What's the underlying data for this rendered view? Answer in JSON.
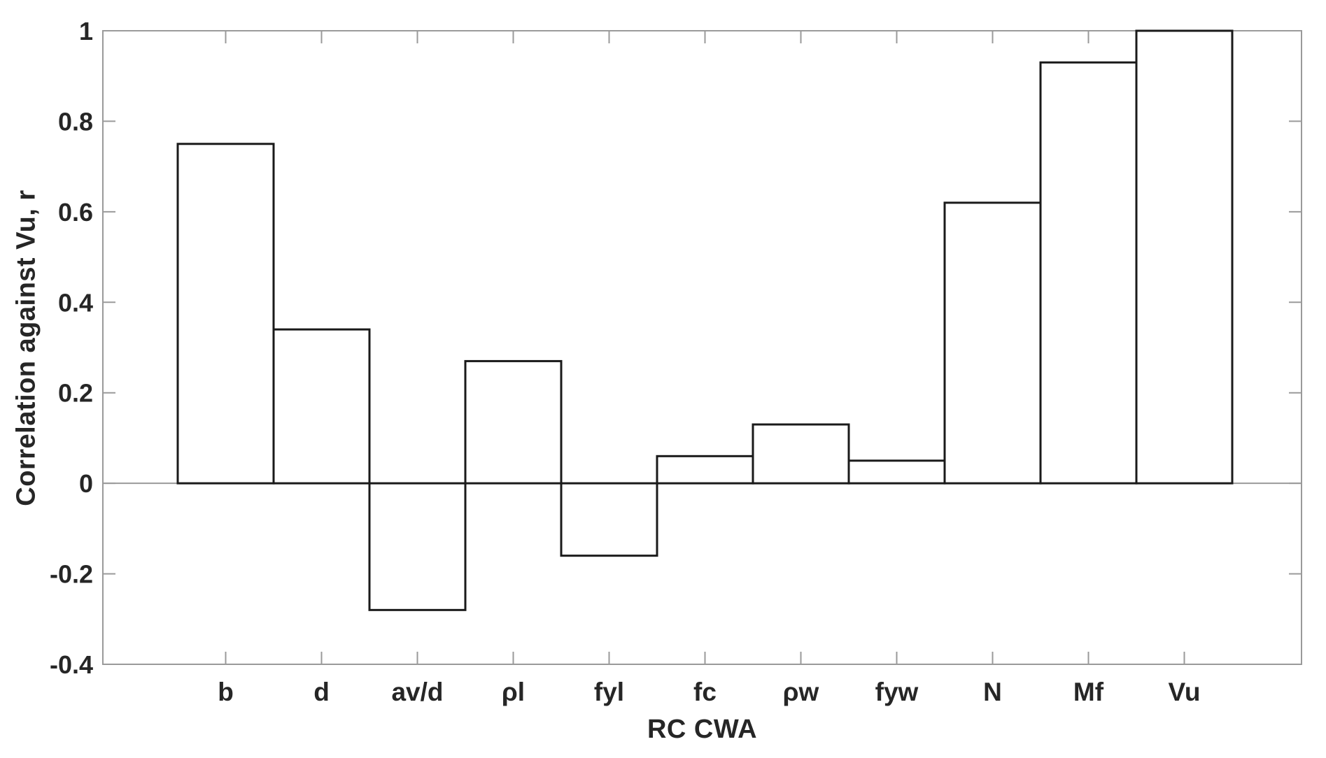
{
  "figure": {
    "background": "#ffffff",
    "axis_color": "#9a9a9a",
    "bar_fill": "#ffffff",
    "bar_stroke": "#1a1a1a",
    "text_color": "#262626"
  },
  "chart_data": {
    "type": "bar",
    "title": "",
    "xlabel": "RC CWA",
    "ylabel": "Correlation against Vu, r",
    "categories": [
      "b",
      "d",
      "av/d",
      "ρl",
      "fyl",
      "fc",
      "ρw",
      "fyw",
      "N",
      "Mf",
      "Vu"
    ],
    "values": [
      0.75,
      0.34,
      -0.28,
      0.27,
      -0.16,
      0.06,
      0.13,
      0.05,
      0.62,
      0.93,
      1.0
    ],
    "ylim": [
      -0.4,
      1.0
    ],
    "ytick_step": 0.2,
    "ytick_labels_top_down": [
      "1",
      "0.8",
      "0.6",
      "0.4",
      "0.2",
      "0",
      "-0.2",
      "-0.4"
    ],
    "grid": false,
    "legend": null,
    "box": true,
    "zero_line": true,
    "bar_width_fraction": 1.0
  }
}
